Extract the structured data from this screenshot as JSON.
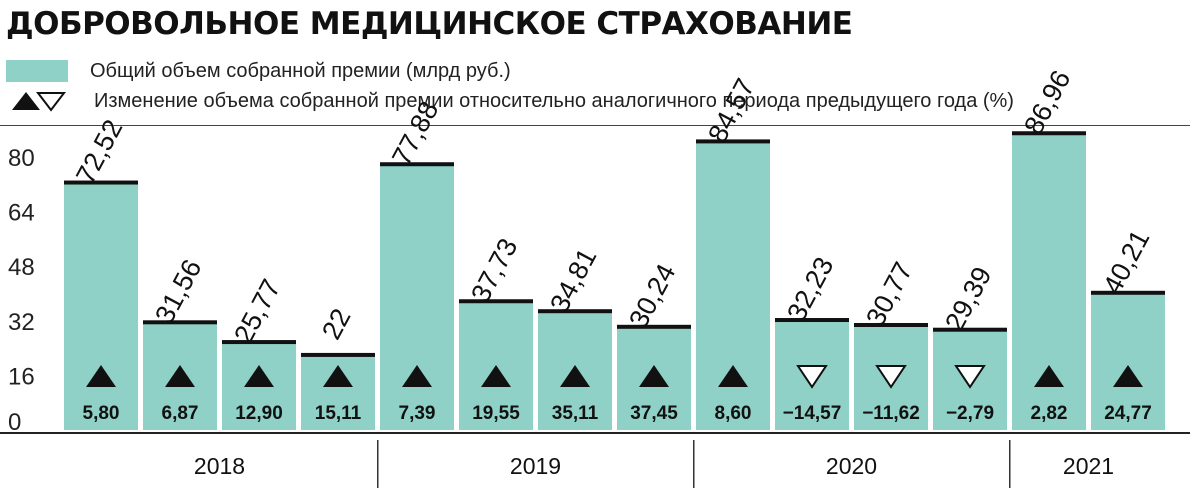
{
  "title": "ДОБРОВОЛЬНОЕ МЕДИЦИНСКОЕ СТРАХОВАНИЕ",
  "legend": {
    "bars": "Общий объем собранной премии (млрд руб.)",
    "change": "Изменение объема собранной премии относительно аналогичного периода предыдущего года (%)"
  },
  "colors": {
    "bar": "#8fd1c6",
    "cap": "#111111",
    "text": "#111111"
  },
  "chart_data": {
    "type": "bar",
    "ylim": [
      0,
      80
    ],
    "yticks": [
      0,
      16,
      32,
      48,
      64,
      80
    ],
    "grid": false,
    "years": [
      "2018",
      "2019",
      "2020",
      "2021"
    ],
    "bars_per_year": [
      4,
      4,
      4,
      2
    ],
    "values": [
      72.52,
      31.56,
      25.77,
      22,
      77.88,
      37.73,
      34.81,
      30.24,
      84.57,
      32.23,
      30.77,
      29.39,
      86.96,
      40.21
    ],
    "value_labels": [
      "72,52",
      "31,56",
      "25,77",
      "22",
      "77,88",
      "37,73",
      "34,81",
      "30,24",
      "84,57",
      "32,23",
      "30,77",
      "29,39",
      "86,96",
      "40,21"
    ],
    "changes": [
      5.8,
      6.87,
      12.9,
      15.11,
      7.39,
      19.55,
      35.11,
      37.45,
      8.6,
      -14.57,
      -11.62,
      -2.79,
      2.82,
      24.77
    ],
    "change_labels": [
      "5,80",
      "6,87",
      "12,90",
      "15,11",
      "7,39",
      "19,55",
      "35,11",
      "37,45",
      "8,60",
      "−14,57",
      "−11,62",
      "−2,79",
      "2,82",
      "24,77"
    ]
  }
}
